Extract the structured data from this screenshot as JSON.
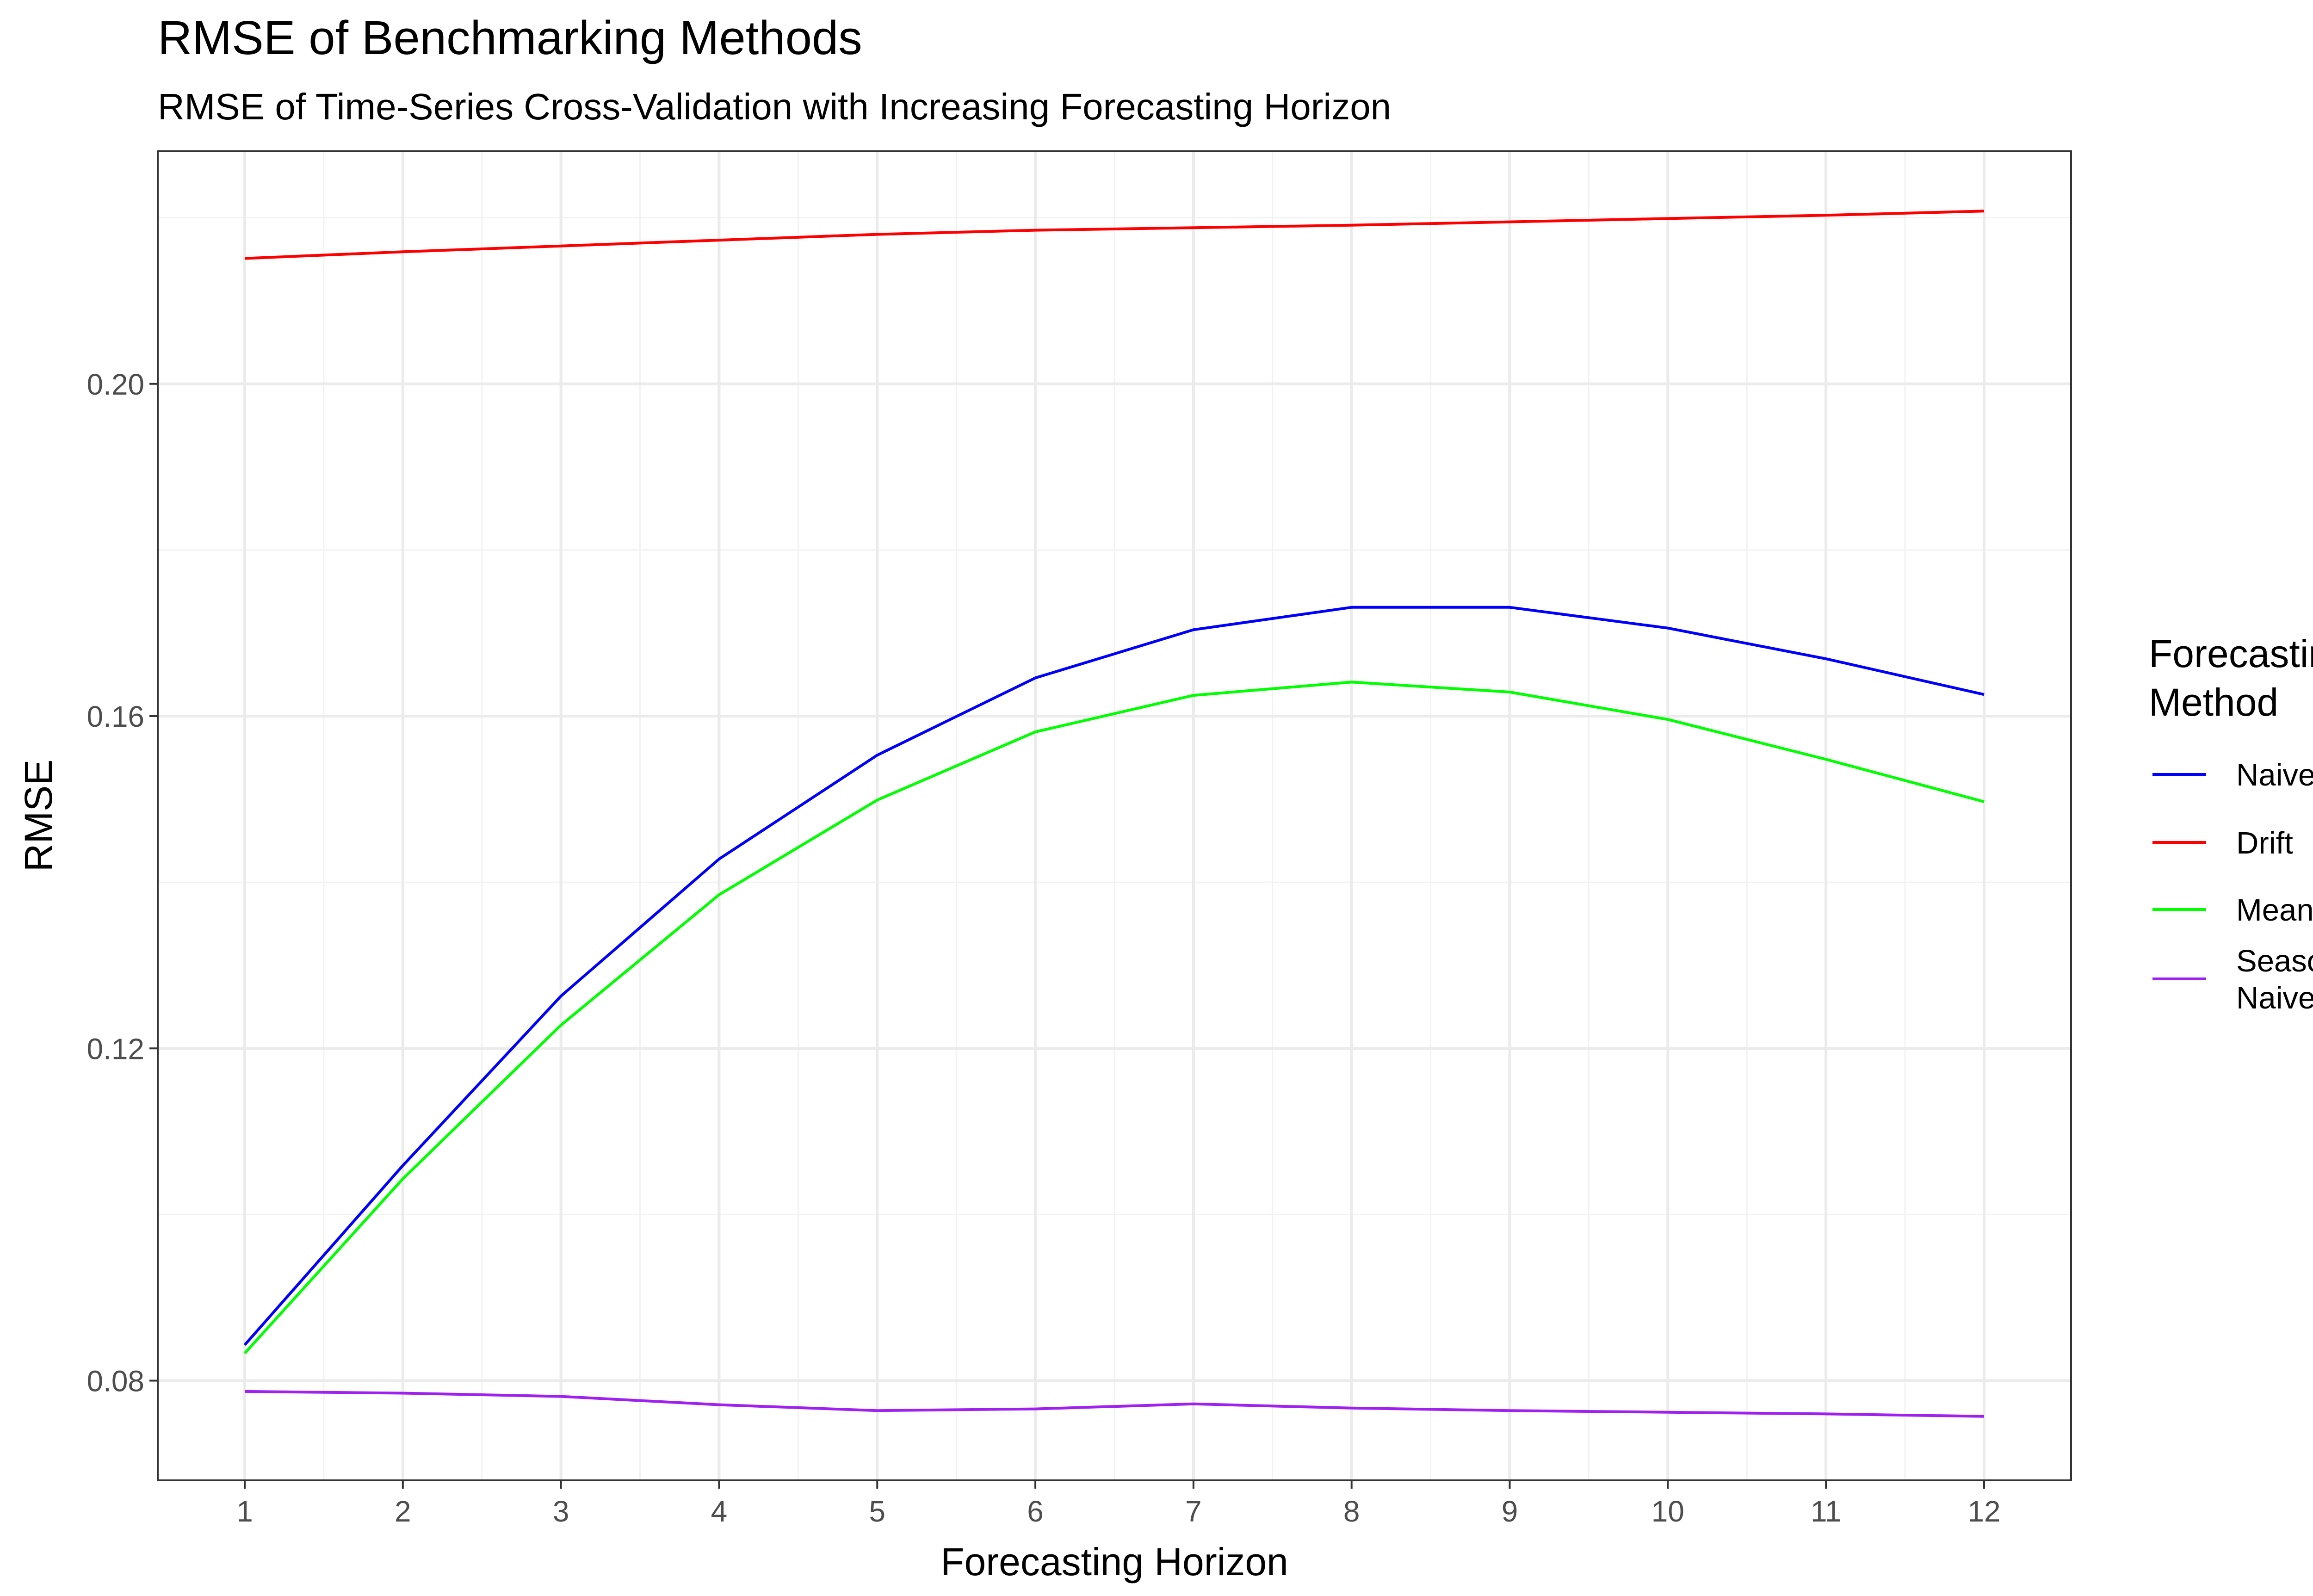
{
  "chart_data": {
    "type": "line",
    "title": "RMSE of Benchmarking Methods",
    "subtitle": "RMSE of Time-Series Cross-Validation with Increasing Forecasting Horizon",
    "xlabel": "Forecasting Horizon",
    "ylabel": "RMSE",
    "x": [
      1,
      2,
      3,
      4,
      5,
      6,
      7,
      8,
      9,
      10,
      11,
      12
    ],
    "x_ticks": [
      "1",
      "2",
      "3",
      "4",
      "5",
      "6",
      "7",
      "8",
      "9",
      "10",
      "11",
      "12"
    ],
    "y_ticks": [
      "0.08",
      "0.12",
      "0.16",
      "0.20"
    ],
    "y_tick_values": [
      0.08,
      0.12,
      0.16,
      0.2
    ],
    "xlim": [
      0.45,
      12.55
    ],
    "ylim": [
      0.068,
      0.228
    ],
    "grid": true,
    "legend": {
      "title_lines": [
        "Forecasting",
        "Method"
      ],
      "position": "right"
    },
    "series": [
      {
        "name": "Naive",
        "label_lines": [
          "Naive"
        ],
        "color": "#0000FF",
        "values": [
          0.0843,
          0.1059,
          0.1263,
          0.1428,
          0.1553,
          0.1646,
          0.1704,
          0.1731,
          0.1731,
          0.1706,
          0.1669,
          0.1626
        ]
      },
      {
        "name": "Drift",
        "label_lines": [
          "Drift"
        ],
        "color": "#FF0000",
        "values": [
          0.2151,
          0.2159,
          0.2166,
          0.2173,
          0.218,
          0.2185,
          0.2188,
          0.2191,
          0.2195,
          0.2199,
          0.2203,
          0.2208
        ]
      },
      {
        "name": "Mean",
        "label_lines": [
          "Mean"
        ],
        "color": "#00FF00",
        "values": [
          0.0833,
          0.1043,
          0.1228,
          0.1385,
          0.1499,
          0.1581,
          0.1625,
          0.1641,
          0.1629,
          0.1596,
          0.1548,
          0.1497
        ]
      },
      {
        "name": "Seasonal Naive",
        "label_lines": [
          "Seasonal",
          "Naive"
        ],
        "color": "#A020F0",
        "values": [
          0.0787,
          0.0785,
          0.0781,
          0.0771,
          0.0764,
          0.0766,
          0.0772,
          0.0767,
          0.0764,
          0.0762,
          0.076,
          0.0757
        ]
      }
    ]
  }
}
